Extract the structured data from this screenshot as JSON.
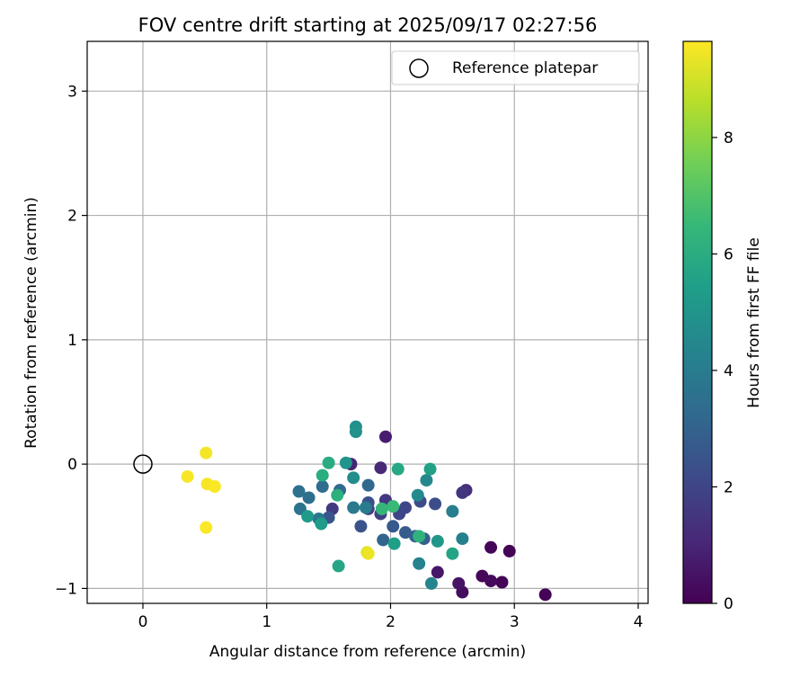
{
  "chart_data": {
    "type": "scatter",
    "title": "FOV centre drift starting at 2025/09/17 02:27:56",
    "xlabel": "Angular distance from reference (arcmin)",
    "ylabel": "Rotation from reference (arcmin)",
    "xlim": [
      -0.45,
      4.08
    ],
    "ylim": [
      -1.12,
      3.4
    ],
    "xticks": [
      "0",
      "1",
      "2",
      "3",
      "4"
    ],
    "yticks": [
      "−1",
      "0",
      "1",
      "2",
      "3"
    ],
    "grid": true,
    "legend": {
      "placement": "top-right",
      "entries": [
        "Reference platepar"
      ]
    },
    "reference_point": {
      "x": 0,
      "y": 0
    },
    "colorbar": {
      "label": "Hours from first FF file",
      "range": [
        0,
        9.65
      ],
      "ticks": [
        "0",
        "2",
        "4",
        "6",
        "8"
      ],
      "colormap": "viridis"
    },
    "points": [
      {
        "x": 3.25,
        "y": -1.05,
        "h": 0.05
      },
      {
        "x": 2.9,
        "y": -0.95,
        "h": 0.1
      },
      {
        "x": 2.96,
        "y": -0.7,
        "h": 0.1
      },
      {
        "x": 2.81,
        "y": -0.67,
        "h": 0.15
      },
      {
        "x": 2.74,
        "y": -0.9,
        "h": 0.15
      },
      {
        "x": 2.81,
        "y": -0.94,
        "h": 0.25
      },
      {
        "x": 2.58,
        "y": -1.03,
        "h": 0.3
      },
      {
        "x": 2.55,
        "y": -0.96,
        "h": 0.5
      },
      {
        "x": 2.38,
        "y": -0.87,
        "h": 0.6
      },
      {
        "x": 1.96,
        "y": 0.22,
        "h": 0.8
      },
      {
        "x": 1.68,
        "y": 0.0,
        "h": 1.0
      },
      {
        "x": 1.92,
        "y": -0.03,
        "h": 1.1
      },
      {
        "x": 2.61,
        "y": -0.21,
        "h": 1.3
      },
      {
        "x": 2.58,
        "y": -0.23,
        "h": 1.5
      },
      {
        "x": 1.96,
        "y": -0.29,
        "h": 1.6
      },
      {
        "x": 1.53,
        "y": -0.36,
        "h": 1.7
      },
      {
        "x": 1.82,
        "y": -0.36,
        "h": 1.8
      },
      {
        "x": 1.92,
        "y": -0.4,
        "h": 1.9
      },
      {
        "x": 2.07,
        "y": -0.4,
        "h": 2.0
      },
      {
        "x": 2.12,
        "y": -0.35,
        "h": 2.1
      },
      {
        "x": 2.24,
        "y": -0.3,
        "h": 2.2
      },
      {
        "x": 2.36,
        "y": -0.32,
        "h": 2.3
      },
      {
        "x": 1.82,
        "y": -0.31,
        "h": 2.4
      },
      {
        "x": 1.76,
        "y": -0.5,
        "h": 2.5
      },
      {
        "x": 1.5,
        "y": -0.43,
        "h": 2.6
      },
      {
        "x": 2.02,
        "y": -0.5,
        "h": 2.7
      },
      {
        "x": 2.12,
        "y": -0.55,
        "h": 2.8
      },
      {
        "x": 2.2,
        "y": -0.58,
        "h": 2.9
      },
      {
        "x": 2.27,
        "y": -0.6,
        "h": 3.0
      },
      {
        "x": 1.94,
        "y": -0.61,
        "h": 3.1
      },
      {
        "x": 1.82,
        "y": -0.17,
        "h": 3.2
      },
      {
        "x": 1.59,
        "y": -0.21,
        "h": 3.3
      },
      {
        "x": 1.45,
        "y": -0.18,
        "h": 3.4
      },
      {
        "x": 1.34,
        "y": -0.27,
        "h": 3.5
      },
      {
        "x": 1.26,
        "y": -0.22,
        "h": 3.6
      },
      {
        "x": 1.27,
        "y": -0.36,
        "h": 3.7
      },
      {
        "x": 1.42,
        "y": -0.44,
        "h": 3.8
      },
      {
        "x": 1.7,
        "y": -0.35,
        "h": 3.9
      },
      {
        "x": 1.8,
        "y": -0.35,
        "h": 4.0
      },
      {
        "x": 2.5,
        "y": -0.38,
        "h": 4.1
      },
      {
        "x": 2.58,
        "y": -0.6,
        "h": 4.2
      },
      {
        "x": 2.23,
        "y": -0.8,
        "h": 4.3
      },
      {
        "x": 2.33,
        "y": -0.96,
        "h": 4.4
      },
      {
        "x": 2.29,
        "y": -0.13,
        "h": 4.5
      },
      {
        "x": 2.22,
        "y": -0.25,
        "h": 4.6
      },
      {
        "x": 1.7,
        "y": -0.11,
        "h": 4.7
      },
      {
        "x": 1.72,
        "y": 0.3,
        "h": 4.8
      },
      {
        "x": 1.72,
        "y": 0.26,
        "h": 4.9
      },
      {
        "x": 1.64,
        "y": 0.01,
        "h": 5.0
      },
      {
        "x": 2.38,
        "y": -0.62,
        "h": 5.1
      },
      {
        "x": 1.33,
        "y": -0.42,
        "h": 5.2
      },
      {
        "x": 1.44,
        "y": -0.48,
        "h": 5.3
      },
      {
        "x": 2.03,
        "y": -0.64,
        "h": 5.4
      },
      {
        "x": 2.32,
        "y": -0.04,
        "h": 5.5
      },
      {
        "x": 2.5,
        "y": -0.72,
        "h": 5.6
      },
      {
        "x": 1.58,
        "y": -0.82,
        "h": 5.7
      },
      {
        "x": 2.06,
        "y": -0.04,
        "h": 5.8
      },
      {
        "x": 1.5,
        "y": 0.01,
        "h": 5.9
      },
      {
        "x": 1.45,
        "y": -0.09,
        "h": 6.0
      },
      {
        "x": 1.57,
        "y": -0.25,
        "h": 6.1
      },
      {
        "x": 2.23,
        "y": -0.58,
        "h": 6.2
      },
      {
        "x": 1.93,
        "y": -0.36,
        "h": 6.4
      },
      {
        "x": 2.02,
        "y": -0.34,
        "h": 6.5
      },
      {
        "x": 1.81,
        "y": -0.71,
        "h": 9.2
      },
      {
        "x": 1.82,
        "y": -0.72,
        "h": 9.4
      },
      {
        "x": 0.51,
        "y": 0.09,
        "h": 9.5
      },
      {
        "x": 0.36,
        "y": -0.1,
        "h": 9.55
      },
      {
        "x": 0.52,
        "y": -0.16,
        "h": 9.55
      },
      {
        "x": 0.58,
        "y": -0.18,
        "h": 9.6
      },
      {
        "x": 0.51,
        "y": -0.51,
        "h": 9.6
      }
    ]
  }
}
